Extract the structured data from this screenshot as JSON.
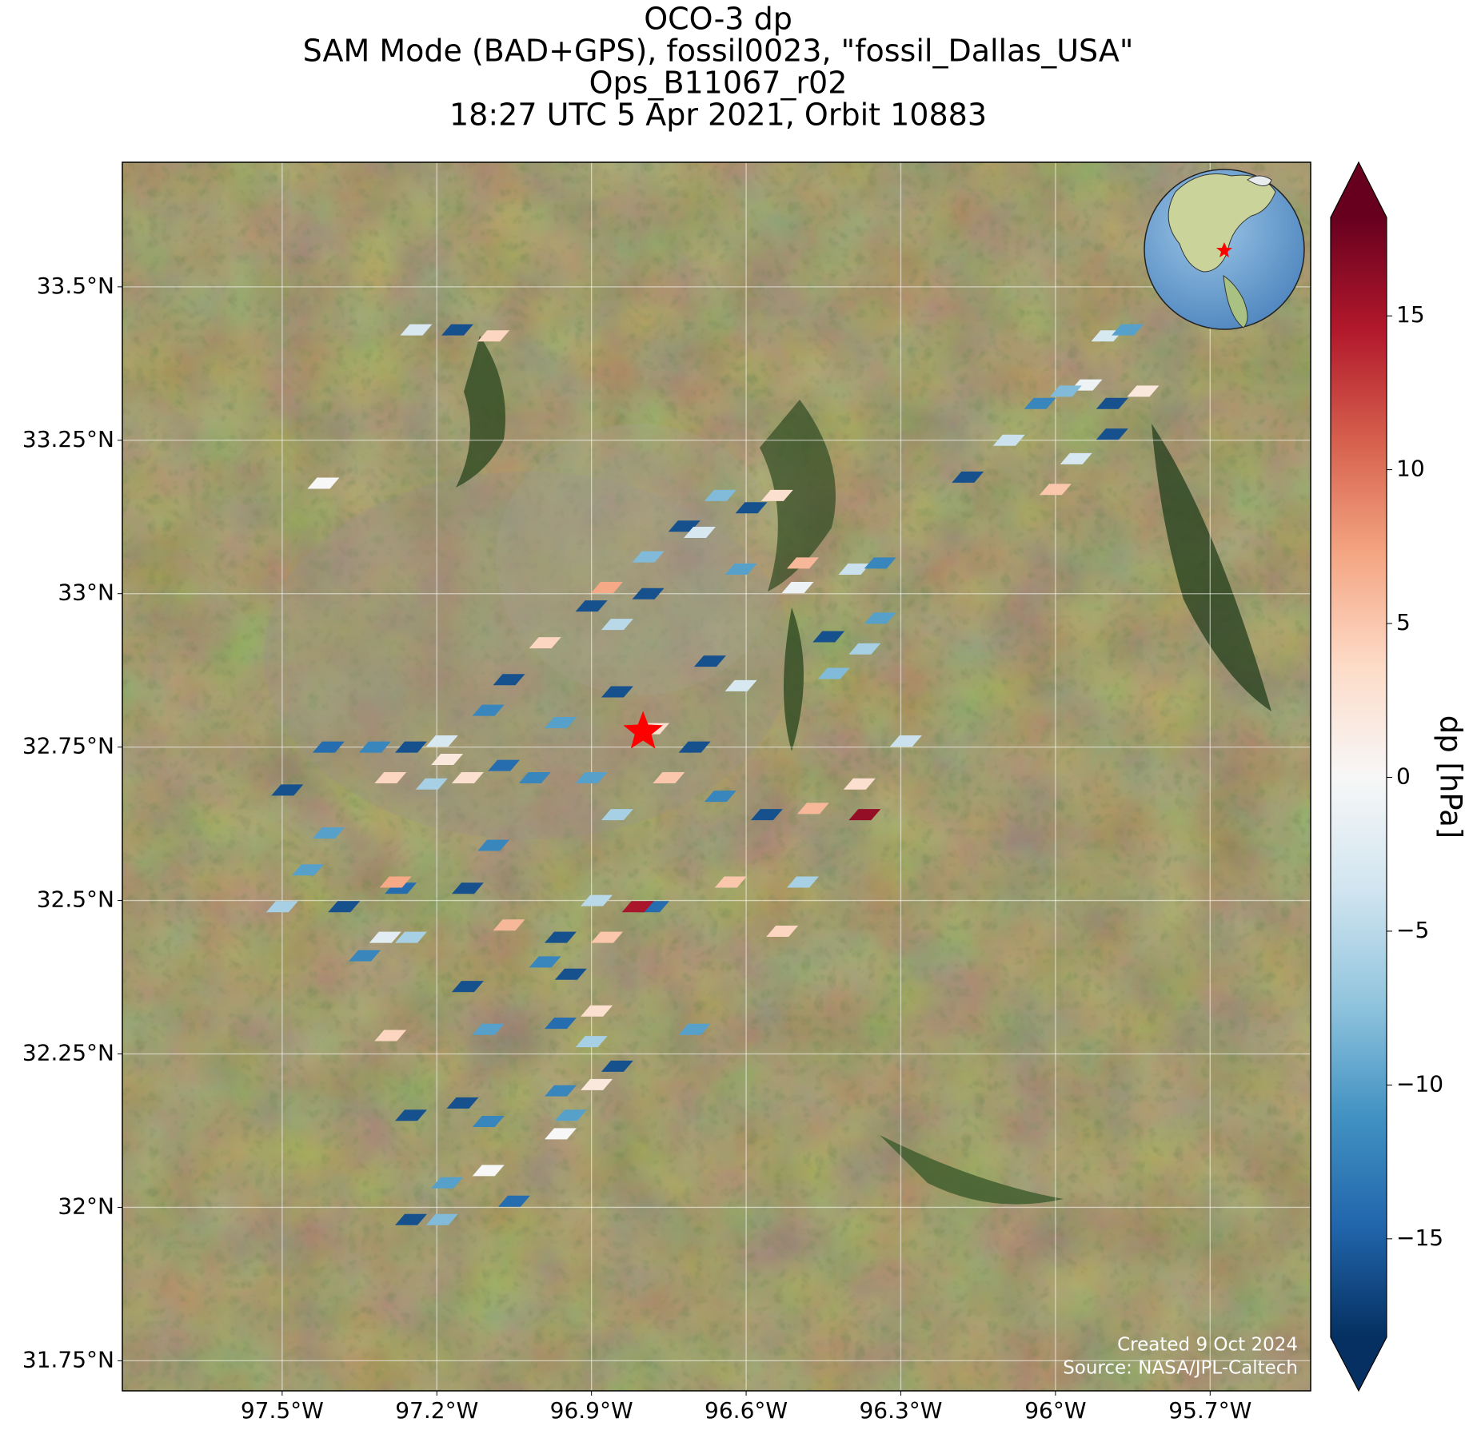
{
  "chart_data": {
    "type": "footprint-map",
    "title": [
      "OCO-3 dp",
      "SAM Mode (BAD+GPS), fossil0023, \"fossil_Dallas_USA\"",
      "Ops_B11067_r02",
      "18:27 UTC 5 Apr 2021, Orbit 10883"
    ],
    "xlim": [
      -97.81,
      -95.505
    ],
    "ylim": [
      31.701,
      33.703
    ],
    "xticks": [
      {
        "value": -97.5,
        "label": "97.5°W"
      },
      {
        "value": -97.2,
        "label": "97.2°W"
      },
      {
        "value": -96.9,
        "label": "96.9°W"
      },
      {
        "value": -96.6,
        "label": "96.6°W"
      },
      {
        "value": -96.3,
        "label": "96.3°W"
      },
      {
        "value": -96,
        "label": "96°W"
      },
      {
        "value": -95.7,
        "label": "95.7°W"
      }
    ],
    "yticks": [
      {
        "value": 31.75,
        "label": "31.75°N"
      },
      {
        "value": 32,
        "label": "32°N"
      },
      {
        "value": 32.25,
        "label": "32.25°N"
      },
      {
        "value": 32.5,
        "label": "32.5°N"
      },
      {
        "value": 32.75,
        "label": "32.75°N"
      },
      {
        "value": 33,
        "label": "33°N"
      },
      {
        "value": 33.25,
        "label": "33.25°N"
      },
      {
        "value": 33.5,
        "label": "33.5°N"
      }
    ],
    "grid": true,
    "site": {
      "lon": -96.8,
      "lat": 32.775,
      "color": "#ff0000"
    },
    "lon": [
      -97.24,
      -97.16,
      -97.09,
      -97.42,
      -95.9,
      -95.86,
      -95.94,
      -95.98,
      -96.03,
      -95.89,
      -95.83,
      -96.09,
      -96.17,
      -95.96,
      -96.0,
      -95.89,
      -96.65,
      -96.54,
      -96.59,
      -96.72,
      -96.69,
      -96.79,
      -96.61,
      -96.49,
      -96.39,
      -96.34,
      -96.5,
      -96.87,
      -96.79,
      -96.9,
      -96.99,
      -96.85,
      -96.67,
      -96.61,
      -96.85,
      -96.96,
      -96.78,
      -97.06,
      -97.1,
      -97.19,
      -97.25,
      -97.18,
      -97.07,
      -97.32,
      -97.41,
      -97.49,
      -97.29,
      -97.21,
      -97.14,
      -97.01,
      -96.9,
      -96.7,
      -96.75,
      -96.65,
      -96.85,
      -96.56,
      -96.47,
      -96.38,
      -96.37,
      -96.29,
      -96.43,
      -96.44,
      -96.37,
      -96.34,
      -96.49,
      -96.63,
      -96.53,
      -96.78,
      -96.81,
      -96.89,
      -96.96,
      -96.87,
      -96.94,
      -96.99,
      -96.89,
      -96.96,
      -96.9,
      -96.85,
      -96.89,
      -96.96,
      -96.94,
      -96.96,
      -97.1,
      -97.18,
      -97.1,
      -97.19,
      -97.25,
      -97.05,
      -97.29,
      -97.1,
      -97.25,
      -97.15,
      -96.7,
      -97.3,
      -97.38,
      -97.34,
      -97.25,
      -97.14,
      -97.06,
      -97.14,
      -97.27,
      -97.45,
      -97.5,
      -97.41,
      -97.28,
      -97.09
    ],
    "lat": [
      33.43,
      33.43,
      33.42,
      33.18,
      33.42,
      33.43,
      33.34,
      33.33,
      33.31,
      33.31,
      33.33,
      33.25,
      33.19,
      33.22,
      33.17,
      33.26,
      33.16,
      33.16,
      33.14,
      33.11,
      33.1,
      33.06,
      33.04,
      33.05,
      33.04,
      33.05,
      33.01,
      33.01,
      33.0,
      32.98,
      32.92,
      32.95,
      32.89,
      32.85,
      32.84,
      32.79,
      32.78,
      32.86,
      32.81,
      32.76,
      32.75,
      32.73,
      32.72,
      32.75,
      32.75,
      32.68,
      32.7,
      32.69,
      32.7,
      32.7,
      32.7,
      32.75,
      32.7,
      32.67,
      32.64,
      32.64,
      32.65,
      32.69,
      32.64,
      32.76,
      32.87,
      32.93,
      32.91,
      32.96,
      32.53,
      32.53,
      32.45,
      32.49,
      32.49,
      32.5,
      32.44,
      32.44,
      32.38,
      32.4,
      32.32,
      32.3,
      32.27,
      32.23,
      32.2,
      32.19,
      32.15,
      32.12,
      32.14,
      32.04,
      32.06,
      31.98,
      31.98,
      32.01,
      32.28,
      32.29,
      32.15,
      32.17,
      32.29,
      32.44,
      32.49,
      32.41,
      32.44,
      32.52,
      32.46,
      32.36,
      32.52,
      32.55,
      32.49,
      32.61,
      32.53,
      32.59
    ],
    "values": [
      -3,
      -16,
      4,
      0,
      -3,
      -10,
      -1,
      -8,
      -12,
      -16,
      2,
      -4,
      -16,
      -3,
      5,
      -16,
      -8,
      3,
      -16,
      -16,
      -3,
      -8,
      -10,
      6,
      -4,
      -12,
      -1,
      7,
      -16,
      -16,
      4,
      -5,
      -16,
      -3,
      -16,
      -10,
      3,
      -16,
      -12,
      -3,
      -16,
      2,
      -14,
      -12,
      -14,
      -16,
      4,
      -6,
      3,
      -12,
      -10,
      -16,
      5,
      -12,
      -6,
      -16,
      6,
      3,
      16,
      -4,
      -8,
      -16,
      -6,
      -10,
      -6,
      5,
      4,
      -14,
      15,
      -5,
      -16,
      5,
      -16,
      -12,
      3,
      -14,
      -6,
      -16,
      2,
      -12,
      -10,
      0,
      -12,
      -10,
      0,
      -8,
      -16,
      -14,
      4,
      -10,
      -16,
      -16,
      -10,
      -2,
      -16,
      -12,
      -6,
      -16,
      6,
      -16,
      -14,
      -10,
      -6,
      -10,
      7,
      -12
    ],
    "colorbar": {
      "label": "dp [hPa]",
      "clim": [
        -18.2,
        18.2
      ],
      "ticks": [
        {
          "value": -15,
          "label": "−15"
        },
        {
          "value": -10,
          "label": "−10"
        },
        {
          "value": -5,
          "label": "−5"
        },
        0,
        5,
        10,
        15
      ],
      "colormap": [
        "#053061",
        "#2166ac",
        "#4393c3",
        "#92c5de",
        "#d1e5f0",
        "#f7f7f7",
        "#fddbc7",
        "#f4a582",
        "#d6604d",
        "#b2182b",
        "#67001f"
      ]
    },
    "credits": [
      "Created 9 Oct 2024",
      "Source: NASA/JPL-Caltech"
    ]
  }
}
